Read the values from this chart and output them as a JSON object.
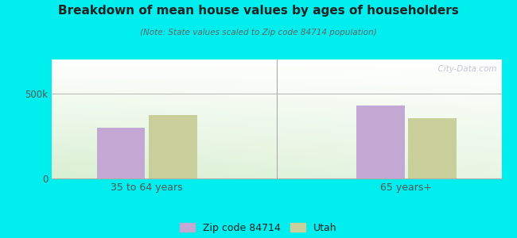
{
  "title": "Breakdown of mean house values by ages of householders",
  "subtitle": "(Note: State values scaled to Zip code 84714 population)",
  "categories": [
    "35 to 64 years",
    "65 years+"
  ],
  "zip_values": [
    300000,
    430000
  ],
  "state_values": [
    375000,
    355000
  ],
  "zip_color": "#c4a8d4",
  "state_color": "#c8cf9a",
  "background_outer": "#00eeee",
  "ylim": [
    0,
    700000
  ],
  "ytick_vals": [
    0,
    500000
  ],
  "ytick_labels": [
    "0",
    "500k"
  ],
  "legend_zip_label": "Zip code 84714",
  "legend_state_label": "Utah",
  "watermark": "  City-Data.com",
  "bar_width": 0.28,
  "group_positions": [
    0.75,
    2.25
  ],
  "divider_x": 1.5,
  "xlim": [
    0.2,
    2.8
  ]
}
